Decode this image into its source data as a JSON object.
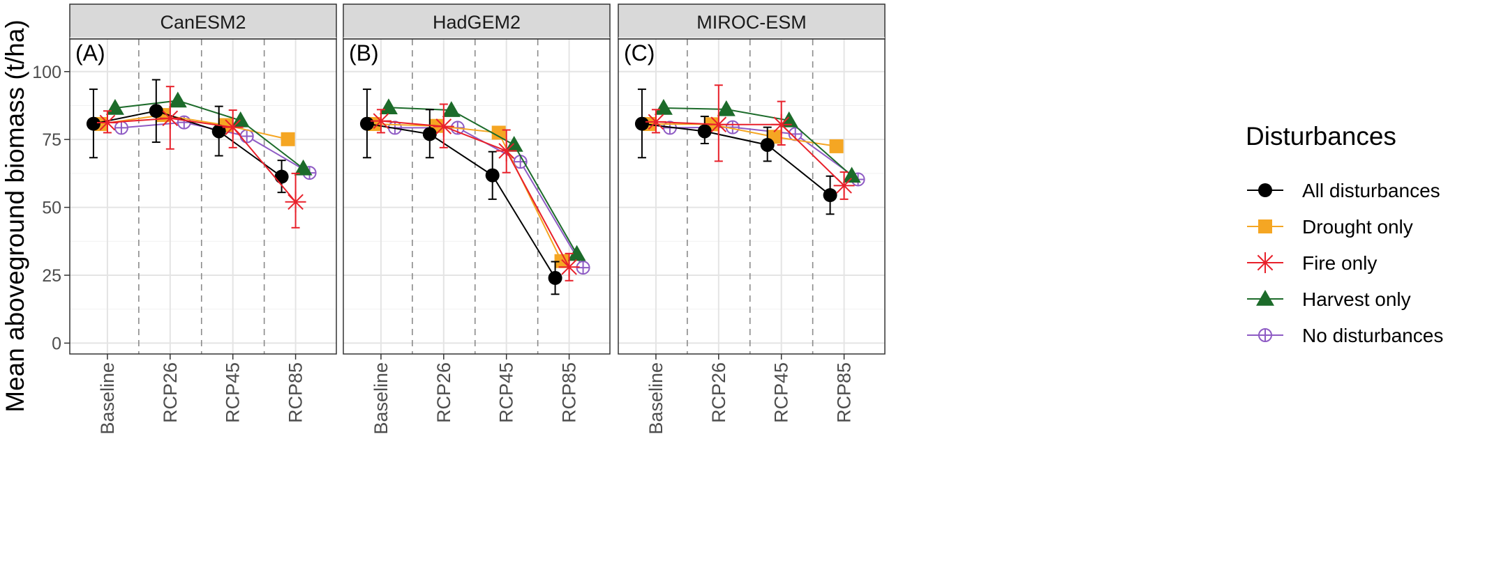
{
  "figure": {
    "ylabel": "Mean aboveground biomass (t/ha)",
    "legend_title": "Disturbances",
    "legend_placement": "right"
  },
  "series_meta": [
    {
      "name": "All disturbances",
      "color": "#000000",
      "marker": "circle"
    },
    {
      "name": "Drought only",
      "color": "#F5A623",
      "marker": "square"
    },
    {
      "name": "Fire only",
      "color": "#E8202A",
      "marker": "asterisk"
    },
    {
      "name": "Harvest only",
      "color": "#1C6B2A",
      "marker": "triangle"
    },
    {
      "name": "No disturbances",
      "color": "#8E5BC4",
      "marker": "circle-plus"
    }
  ],
  "chart_data": [
    {
      "type": "line",
      "title": "CanESM2",
      "panel_label": "(A)",
      "categories": [
        "Baseline",
        "RCP26",
        "RCP45",
        "RCP85"
      ],
      "y_ticks": [
        0,
        25,
        50,
        75,
        100
      ],
      "ylim": [
        -4,
        112
      ],
      "grid": true,
      "series": [
        {
          "name": "All disturbances",
          "values": [
            80.8,
            85.5,
            78.0,
            61.3
          ],
          "err_low": [
            68.3,
            74.0,
            69.0,
            55.5
          ],
          "err_high": [
            93.5,
            97.0,
            87.2,
            67.3
          ]
        },
        {
          "name": "Drought only",
          "values": [
            80.7,
            84.0,
            80.3,
            75.1
          ],
          "err_low": null,
          "err_high": null
        },
        {
          "name": "Fire only",
          "values": [
            81.2,
            82.8,
            79.5,
            52.0
          ],
          "err_low": [
            77.5,
            71.5,
            72.0,
            42.5
          ],
          "err_high": [
            85.5,
            94.5,
            85.8,
            62.5
          ]
        },
        {
          "name": "Harvest only",
          "values": [
            86.6,
            89.3,
            82.0,
            64.3
          ],
          "err_low": null,
          "err_high": null
        },
        {
          "name": "No disturbances",
          "values": [
            79.3,
            81.3,
            76.2,
            62.7
          ],
          "err_low": null,
          "err_high": null
        }
      ]
    },
    {
      "type": "line",
      "title": "HadGEM2",
      "panel_label": "(B)",
      "categories": [
        "Baseline",
        "RCP26",
        "RCP45",
        "RCP85"
      ],
      "y_ticks": [
        0,
        25,
        50,
        75,
        100
      ],
      "ylim": [
        -4,
        112
      ],
      "grid": true,
      "series": [
        {
          "name": "All disturbances",
          "values": [
            80.8,
            77.0,
            61.8,
            24.0
          ],
          "err_low": [
            68.3,
            68.3,
            53.0,
            18.0
          ],
          "err_high": [
            93.5,
            86.0,
            70.5,
            30.0
          ]
        },
        {
          "name": "Drought only",
          "values": [
            80.7,
            80.0,
            77.5,
            30.2
          ],
          "err_low": null,
          "err_high": null
        },
        {
          "name": "Fire only",
          "values": [
            81.8,
            79.8,
            70.8,
            28.0
          ],
          "err_low": [
            77.5,
            72.0,
            62.8,
            23.0
          ],
          "err_high": [
            86.0,
            88.0,
            78.5,
            33.0
          ]
        },
        {
          "name": "Harvest only",
          "values": [
            86.8,
            85.8,
            73.0,
            32.8
          ],
          "err_low": null,
          "err_high": null
        },
        {
          "name": "No disturbances",
          "values": [
            79.3,
            79.3,
            66.8,
            27.8
          ],
          "err_low": null,
          "err_high": null
        }
      ]
    },
    {
      "type": "line",
      "title": "MIROC-ESM",
      "panel_label": "(C)",
      "categories": [
        "Baseline",
        "RCP26",
        "RCP45",
        "RCP85"
      ],
      "y_ticks": [
        0,
        25,
        50,
        75,
        100
      ],
      "ylim": [
        -4,
        112
      ],
      "grid": true,
      "series": [
        {
          "name": "All disturbances",
          "values": [
            80.8,
            78.0,
            73.0,
            54.5
          ],
          "err_low": [
            68.3,
            73.5,
            67.0,
            47.5
          ],
          "err_high": [
            93.5,
            83.5,
            79.5,
            61.5
          ]
        },
        {
          "name": "Drought only",
          "values": [
            80.7,
            80.6,
            76.0,
            72.5
          ],
          "err_low": null,
          "err_high": null
        },
        {
          "name": "Fire only",
          "values": [
            81.5,
            80.5,
            80.5,
            58.0
          ],
          "err_low": [
            77.5,
            67.0,
            73.0,
            53.0
          ],
          "err_high": [
            86.0,
            95.0,
            89.0,
            63.0
          ]
        },
        {
          "name": "Harvest only",
          "values": [
            86.6,
            86.1,
            82.0,
            61.6
          ],
          "err_low": null,
          "err_high": null
        },
        {
          "name": "No disturbances",
          "values": [
            79.3,
            79.5,
            77.0,
            60.3
          ],
          "err_low": null,
          "err_high": null
        }
      ]
    }
  ]
}
